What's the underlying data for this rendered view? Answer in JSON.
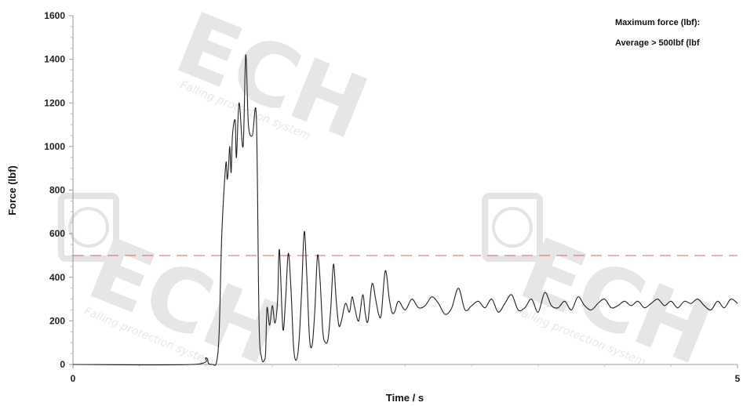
{
  "chart_data": {
    "type": "line",
    "xlabel": "Time / s",
    "ylabel": "Force (lbf)",
    "xlim": [
      0,
      5
    ],
    "ylim": [
      0,
      1600
    ],
    "x_ticks": [
      "0",
      "5"
    ],
    "y_ticks": [
      "0",
      "200",
      "400",
      "600",
      "800",
      "1000",
      "1200",
      "1400",
      "1600"
    ],
    "annotations": [
      "Maximum force (lbf):",
      "Average > 500lbf (lbf"
    ],
    "reference_line": {
      "y": 500,
      "color": "#e06060",
      "style": "dashed"
    },
    "series": [
      {
        "color": "#222222",
        "x": [
          0,
          0.9,
          1.0,
          1.02,
          1.05,
          1.08,
          1.1,
          1.12,
          1.15,
          1.16,
          1.17,
          1.18,
          1.19,
          1.2,
          1.22,
          1.23,
          1.25,
          1.28,
          1.3,
          1.32,
          1.35,
          1.38,
          1.4,
          1.42,
          1.44,
          1.45,
          1.46,
          1.48,
          1.5,
          1.52,
          1.54,
          1.55,
          1.56,
          1.58,
          1.6,
          1.62,
          1.64,
          1.66,
          1.68,
          1.7,
          1.72,
          1.74,
          1.76,
          1.78,
          1.8,
          1.82,
          1.84,
          1.86,
          1.88,
          1.9,
          1.92,
          1.94,
          1.96,
          1.98,
          2.0,
          2.02,
          2.05,
          2.08,
          2.1,
          2.12,
          2.15,
          2.18,
          2.2,
          2.22,
          2.25,
          2.28,
          2.3,
          2.32,
          2.35,
          2.38,
          2.4,
          2.42,
          2.45,
          2.5,
          2.55,
          2.6,
          2.65,
          2.7,
          2.75,
          2.8,
          2.85,
          2.9,
          2.95,
          3.0,
          3.05,
          3.1,
          3.15,
          3.2,
          3.25,
          3.3,
          3.35,
          3.4,
          3.45,
          3.5,
          3.55,
          3.6,
          3.65,
          3.7,
          3.75,
          3.8,
          3.85,
          3.9,
          3.95,
          4.0,
          4.05,
          4.1,
          4.15,
          4.2,
          4.25,
          4.3,
          4.35,
          4.4,
          4.45,
          4.5,
          4.55,
          4.6,
          4.65,
          4.7,
          4.75,
          4.8,
          4.85,
          4.9,
          4.95,
          5.0
        ],
        "y": [
          0,
          0,
          30,
          5,
          0,
          10,
          150,
          600,
          920,
          850,
          900,
          1000,
          880,
          1050,
          1120,
          950,
          1200,
          1000,
          1420,
          1100,
          1050,
          1130,
          200,
          30,
          20,
          60,
          260,
          180,
          270,
          190,
          300,
          520,
          450,
          160,
          300,
          510,
          350,
          80,
          20,
          100,
          330,
          610,
          400,
          120,
          90,
          250,
          500,
          380,
          150,
          100,
          120,
          260,
          460,
          300,
          180,
          200,
          280,
          240,
          310,
          260,
          200,
          320,
          230,
          200,
          370,
          290,
          230,
          230,
          430,
          300,
          240,
          240,
          290,
          250,
          300,
          260,
          270,
          310,
          280,
          230,
          260,
          350,
          250,
          270,
          290,
          260,
          300,
          240,
          280,
          320,
          250,
          260,
          300,
          240,
          330,
          270,
          260,
          290,
          250,
          310,
          270,
          250,
          280,
          300,
          260,
          270,
          290,
          270,
          290,
          260,
          280,
          300,
          270,
          290,
          260,
          290,
          280,
          300,
          270,
          250,
          290,
          260,
          300,
          280
        ]
      }
    ]
  },
  "watermark": {
    "brand": "ECH",
    "tagline": "Falling protection system",
    "registered": "®"
  }
}
